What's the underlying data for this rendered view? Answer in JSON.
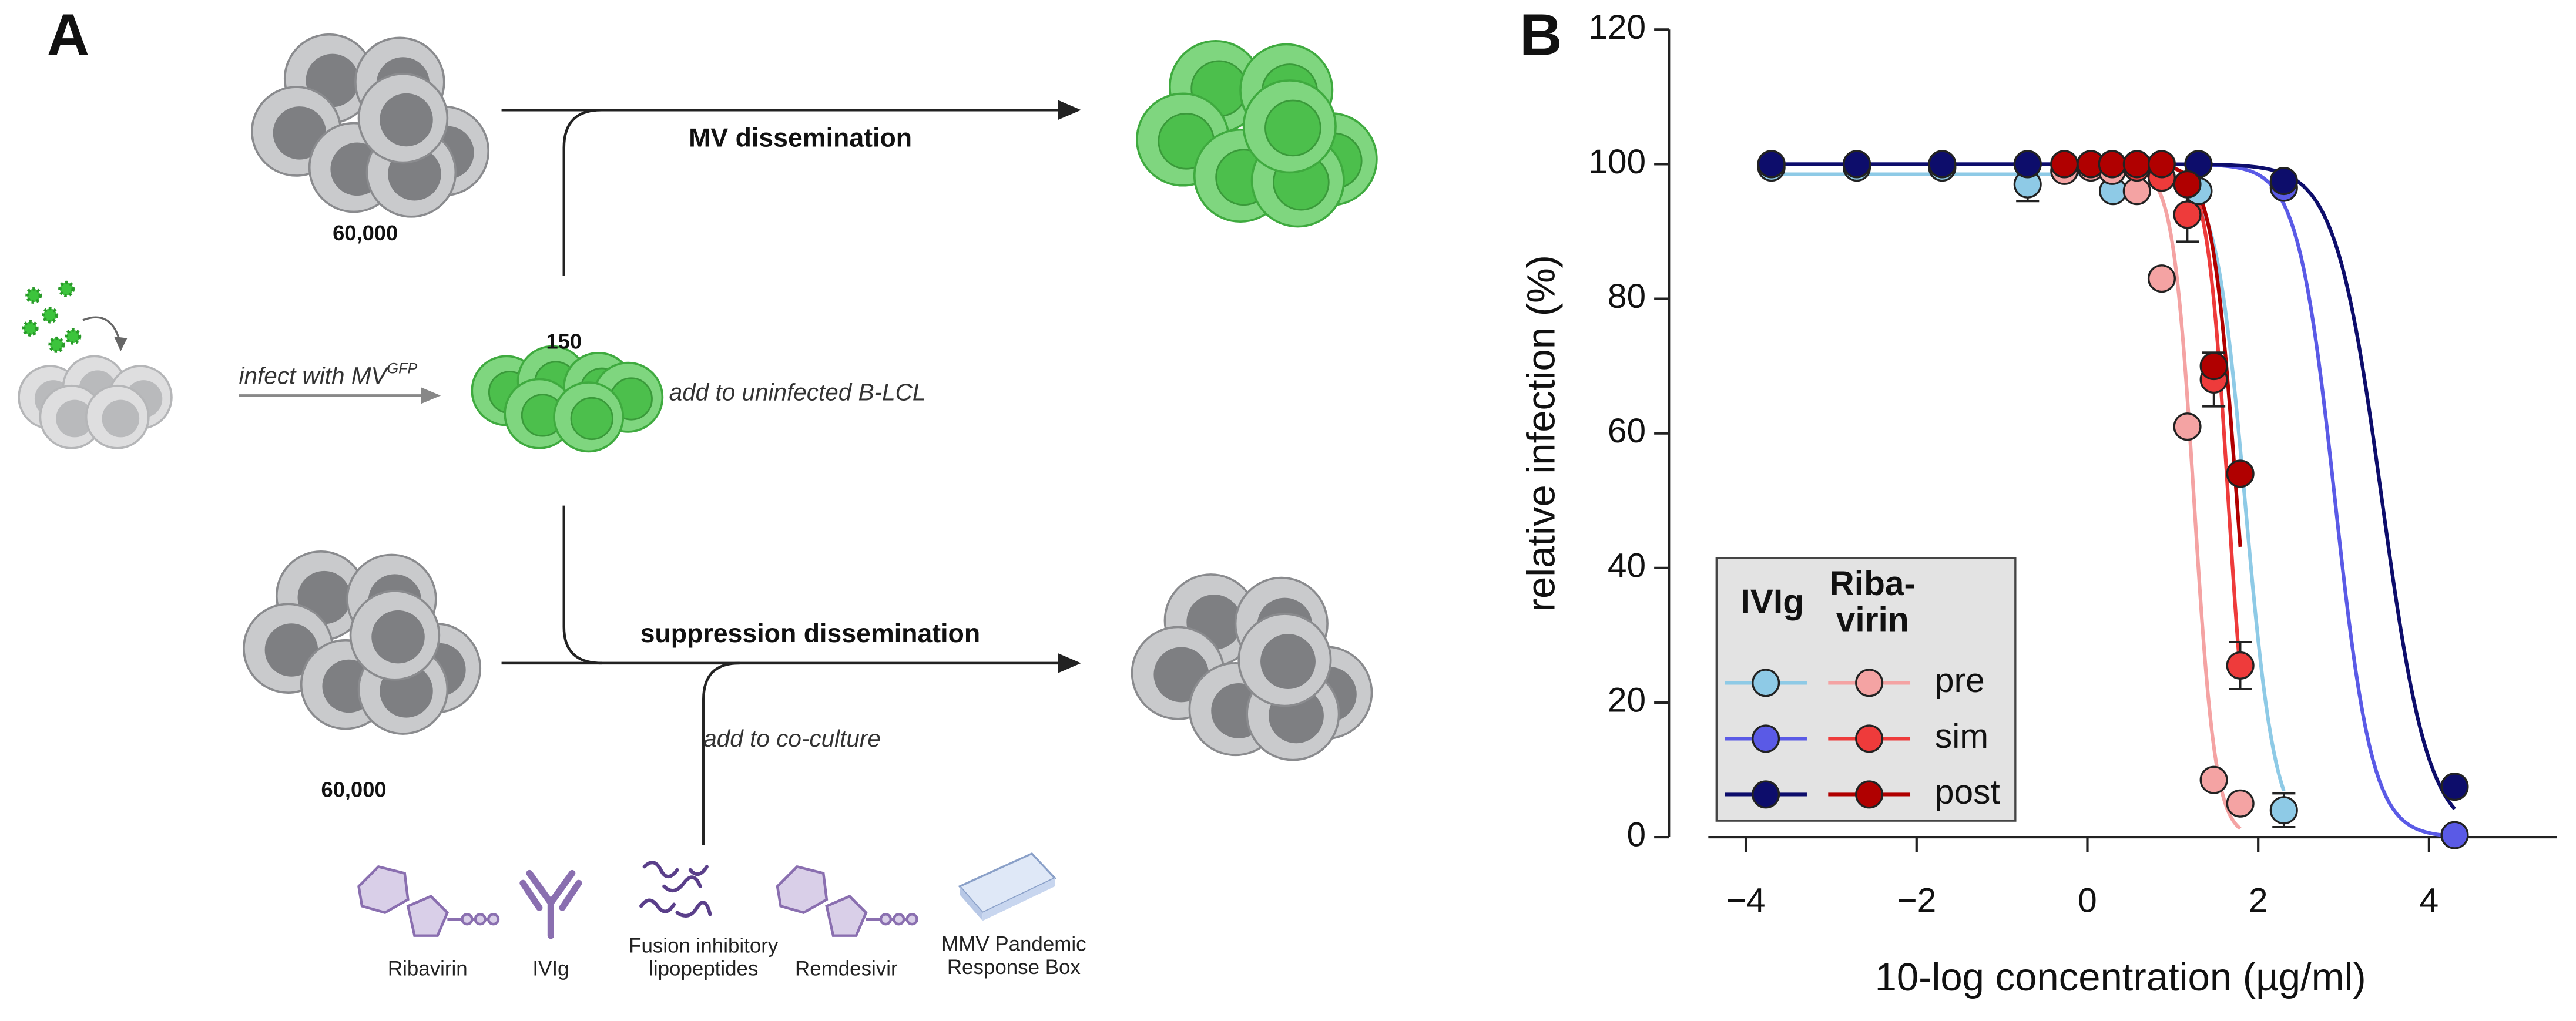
{
  "panel_a": {
    "label": "A",
    "top": {
      "cells": "60,000",
      "arrow_label": "MV dissemination"
    },
    "infect_label": "infect with MV",
    "infect_superscript": "GFP",
    "inoculum": "150",
    "add_label": "add to uninfected B-LCL",
    "bottom": {
      "cells": "60,000",
      "arrow_label": "suppression dissemination"
    },
    "coculture_label": "add to co-culture",
    "compounds": [
      {
        "label": [
          "Ribavirin"
        ]
      },
      {
        "label": [
          "IVIg"
        ]
      },
      {
        "label": [
          "Fusion inhibitory",
          "lipopeptides"
        ]
      },
      {
        "label": [
          "Remdesivir"
        ]
      },
      {
        "label": [
          "MMV Pandemic",
          "Response Box"
        ]
      }
    ]
  },
  "chart_data": {
    "type": "scatter",
    "label": "B",
    "x_label": "10-log concentration (µg/ml)",
    "y_label": "relative infection (%)",
    "xlim": [
      -4.9,
      5.5
    ],
    "xticks": [
      {
        "value": -4,
        "label": "−4"
      },
      {
        "value": -2,
        "label": "−2"
      },
      0,
      2,
      4
    ],
    "ylim": [
      0,
      120
    ],
    "yticks": [
      0,
      20,
      40,
      60,
      80,
      100,
      120
    ],
    "legend": {
      "position": "lower left",
      "rows": [
        "pre",
        "sim",
        "post"
      ]
    },
    "groups": [
      {
        "name": [
          "IVIg"
        ],
        "series": [
          {
            "color": "#8ecae6",
            "x": [
              -3.7,
              -2.7,
              -1.7,
              -0.7,
              0.3,
              1.3,
              2.3
            ],
            "values": [
              99.5,
              99.5,
              99.5,
              97,
              96,
              96,
              4
            ],
            "errors": [
              null,
              null,
              null,
              2.5,
              null,
              null,
              2.5
            ],
            "fit": {
              "top": 98.5,
              "bottom": 0,
              "log_ec50": 1.85,
              "hill": 2.5
            }
          },
          {
            "color": "#5a5ae6",
            "x": [
              -3.7,
              -2.7,
              -1.7,
              -0.7,
              1.3,
              2.3,
              4.3
            ],
            "values": [
              100,
              100,
              100,
              100,
              100,
              96.5,
              0.3
            ],
            "errors": [
              null,
              null,
              null,
              null,
              null,
              null,
              null
            ],
            "fit": {
              "top": 100,
              "bottom": 0,
              "log_ec50": 2.9,
              "hill": 2
            }
          },
          {
            "color": "#0d0d6b",
            "x": [
              -3.7,
              -2.7,
              -1.7,
              -0.7,
              1.3,
              2.3,
              4.3
            ],
            "values": [
              100,
              100,
              100,
              100,
              100,
              97.5,
              7.5
            ],
            "errors": [
              null,
              null,
              null,
              null,
              null,
              null,
              null
            ],
            "fit": {
              "top": 100,
              "bottom": 0,
              "log_ec50": 3.45,
              "hill": 1.6
            }
          }
        ]
      },
      {
        "name": [
          "Riba-",
          "virin"
        ],
        "series": [
          {
            "color": "#f4a3a3",
            "x": [
              -0.27,
              0.04,
              0.29,
              0.58,
              0.87,
              1.17,
              1.48,
              1.79
            ],
            "values": [
              99,
              99.5,
              99,
              96,
              83,
              61,
              8.5,
              5
            ],
            "errors": [
              null,
              null,
              null,
              null,
              null,
              null,
              null,
              null
            ],
            "fit": {
              "top": 99.5,
              "bottom": 0,
              "log_ec50": 1.25,
              "hill": 3.5
            }
          },
          {
            "color": "#ee3b3b",
            "x": [
              -0.27,
              0.04,
              0.29,
              0.58,
              0.87,
              1.17,
              1.48,
              1.79
            ],
            "values": [
              100,
              100,
              100,
              99.5,
              98,
              92.5,
              68,
              25.5
            ],
            "errors": [
              null,
              null,
              null,
              null,
              null,
              4,
              4,
              3.5
            ],
            "fit": {
              "top": 100,
              "bottom": 0,
              "log_ec50": 1.65,
              "hill": 3.5
            }
          },
          {
            "color": "#b00000",
            "x": [
              -0.27,
              0.04,
              0.29,
              0.58,
              0.87,
              1.17,
              1.48,
              1.79
            ],
            "values": [
              100,
              100,
              100,
              100,
              100,
              97,
              70,
              54
            ],
            "errors": [
              null,
              null,
              null,
              null,
              null,
              null,
              2,
              null
            ],
            "fit": {
              "top": 100,
              "bottom": 0,
              "log_ec50": 1.75,
              "hill": 3
            }
          }
        ]
      }
    ]
  }
}
